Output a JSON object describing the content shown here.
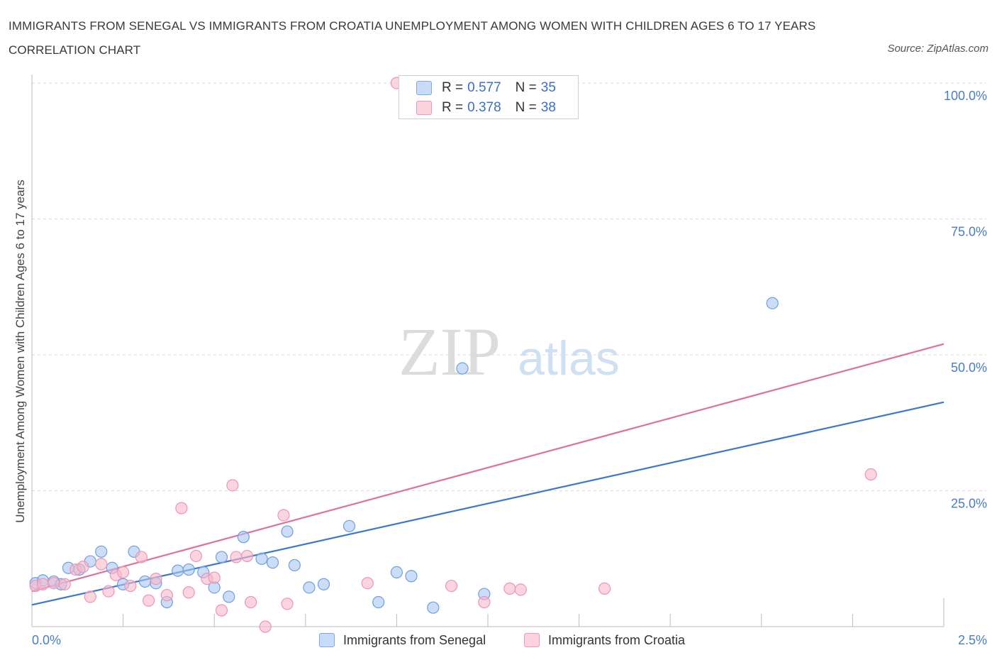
{
  "title": "IMMIGRANTS FROM SENEGAL VS IMMIGRANTS FROM CROATIA UNEMPLOYMENT AMONG WOMEN WITH CHILDREN AGES 6 TO 17 YEARS CORRELATION CHART",
  "source": "Source: ZipAtlas.com",
  "watermark": {
    "zip": "ZIP",
    "atlas": "atlas"
  },
  "legend_top": [
    {
      "r_label": "R =",
      "r_value": "0.577",
      "n_label": "N =",
      "n_value": "35",
      "color": "#a9c7f2"
    },
    {
      "r_label": "R =",
      "r_value": "0.378",
      "n_label": "N =",
      "n_value": "38",
      "color": "#f6b9cb"
    }
  ],
  "legend_bottom": [
    {
      "label": "Immigrants from Senegal",
      "color": "#a9c7f2"
    },
    {
      "label": "Immigrants from Croatia",
      "color": "#f6b9cb"
    }
  ],
  "colors": {
    "senegal_fill": "#a9c7f2",
    "senegal_stroke": "#6f9fe0",
    "senegal_line": "#3a78d0",
    "croatia_fill": "#f6b9cb",
    "croatia_stroke": "#ee95b1",
    "croatia_line": "#e0709a",
    "tick_text": "#4a7cc9",
    "grid": "#d9d9d9"
  },
  "chart_data": {
    "type": "scatter",
    "title": "IMMIGRANTS FROM SENEGAL VS IMMIGRANTS FROM CROATIA UNEMPLOYMENT AMONG WOMEN WITH CHILDREN AGES 6 TO 17 YEARS CORRELATION CHART",
    "xlabel": "",
    "ylabel": "Unemployment Among Women with Children Ages 6 to 17 years",
    "xlim": [
      0,
      2.5
    ],
    "ylim": [
      0,
      100
    ],
    "x_tick_labels": [
      "0.0%",
      "2.5%"
    ],
    "y_tick_labels": [
      "100.0%",
      "75.0%",
      "50.0%",
      "25.0%"
    ],
    "y_ticks": [
      100,
      75,
      50,
      25
    ],
    "grid": "horizontal dashed",
    "legend_placement": "bottom-center",
    "series": [
      {
        "name": "Immigrants from Senegal",
        "points": [
          [
            0.01,
            8.0
          ],
          [
            0.03,
            8.5
          ],
          [
            0.06,
            8.3
          ],
          [
            0.08,
            7.8
          ],
          [
            0.1,
            10.8
          ],
          [
            0.13,
            10.5
          ],
          [
            0.16,
            12.0
          ],
          [
            0.19,
            13.8
          ],
          [
            0.22,
            10.8
          ],
          [
            0.25,
            7.8
          ],
          [
            0.28,
            13.8
          ],
          [
            0.31,
            8.3
          ],
          [
            0.34,
            8.0
          ],
          [
            0.37,
            4.5
          ],
          [
            0.4,
            10.3
          ],
          [
            0.43,
            10.5
          ],
          [
            0.47,
            10.0
          ],
          [
            0.5,
            7.2
          ],
          [
            0.52,
            12.8
          ],
          [
            0.54,
            5.5
          ],
          [
            0.58,
            16.5
          ],
          [
            0.63,
            12.5
          ],
          [
            0.66,
            11.8
          ],
          [
            0.7,
            17.5
          ],
          [
            0.72,
            11.3
          ],
          [
            0.76,
            7.2
          ],
          [
            0.8,
            7.8
          ],
          [
            0.87,
            18.5
          ],
          [
            0.95,
            4.5
          ],
          [
            1.0,
            10.0
          ],
          [
            1.04,
            9.3
          ],
          [
            1.1,
            3.5
          ],
          [
            1.18,
            47.5
          ],
          [
            1.24,
            6.0
          ],
          [
            2.03,
            59.5
          ]
        ],
        "trendline": {
          "x": [
            0,
            2.5
          ],
          "y": [
            4.0,
            41.3
          ]
        }
      },
      {
        "name": "Immigrants from Croatia",
        "points": [
          [
            0.01,
            7.5
          ],
          [
            0.03,
            7.8
          ],
          [
            0.06,
            8.0
          ],
          [
            0.09,
            7.8
          ],
          [
            0.12,
            10.5
          ],
          [
            0.14,
            11.0
          ],
          [
            0.16,
            5.5
          ],
          [
            0.19,
            11.5
          ],
          [
            0.21,
            6.5
          ],
          [
            0.23,
            9.5
          ],
          [
            0.25,
            10.0
          ],
          [
            0.27,
            7.5
          ],
          [
            0.3,
            12.8
          ],
          [
            0.32,
            4.8
          ],
          [
            0.34,
            8.8
          ],
          [
            0.37,
            5.8
          ],
          [
            0.41,
            21.8
          ],
          [
            0.43,
            6.3
          ],
          [
            0.45,
            13.0
          ],
          [
            0.48,
            8.8
          ],
          [
            0.5,
            9.0
          ],
          [
            0.52,
            3.0
          ],
          [
            0.55,
            26.0
          ],
          [
            0.56,
            12.8
          ],
          [
            0.59,
            13.0
          ],
          [
            0.6,
            4.5
          ],
          [
            0.64,
            0.0
          ],
          [
            0.69,
            20.5
          ],
          [
            0.7,
            4.2
          ],
          [
            0.92,
            8.0
          ],
          [
            1.0,
            100.0
          ],
          [
            1.15,
            7.5
          ],
          [
            1.24,
            4.5
          ],
          [
            1.31,
            7.0
          ],
          [
            1.34,
            6.8
          ],
          [
            1.4,
            100.0
          ],
          [
            1.57,
            7.0
          ],
          [
            2.3,
            28.0
          ]
        ],
        "trendline": {
          "x": [
            0,
            2.5
          ],
          "y": [
            6.5,
            52.0
          ]
        }
      }
    ]
  }
}
